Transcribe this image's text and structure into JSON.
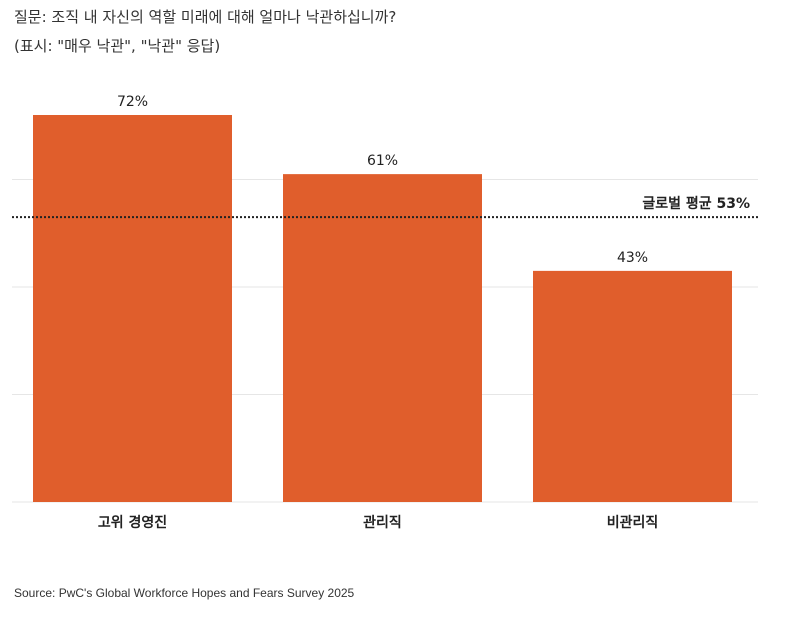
{
  "chart_data": {
    "type": "bar",
    "title": "질문: 조직 내 자신의 역할 미래에 대해 얼마나 낙관하십니까?",
    "subtitle": "(표시: \"매우 낙관\", \"낙관\" 응답)",
    "categories": [
      "고위 경영진",
      "관리직",
      "비관리직"
    ],
    "values": [
      72,
      61,
      43
    ],
    "data_labels": [
      "72%",
      "61%",
      "43%"
    ],
    "ylim": [
      0,
      80
    ],
    "grid": true,
    "gridlines": [
      0,
      20,
      40,
      60
    ],
    "reference_line": {
      "value": 53,
      "label": "글로벌 평균 53%",
      "style": "dotted"
    },
    "bar_color": "#E05E2C",
    "source": "Source: PwC's Global Workforce Hopes and Fears Survey 2025"
  }
}
